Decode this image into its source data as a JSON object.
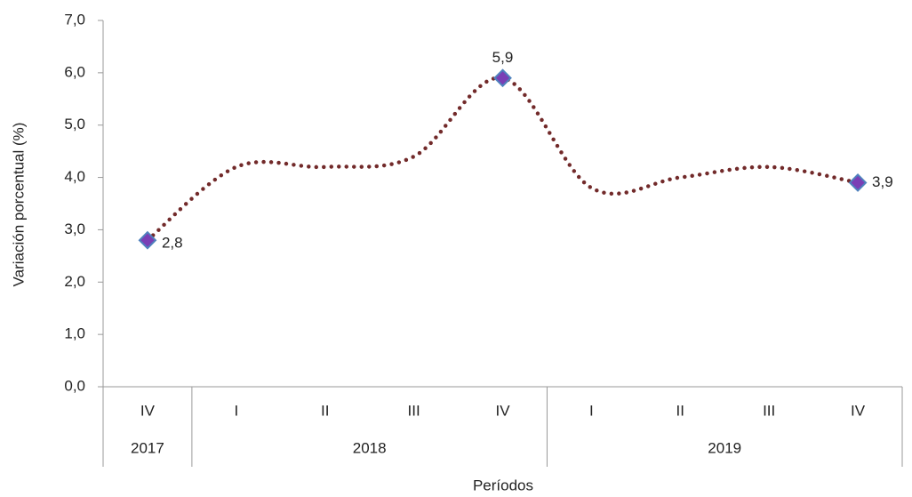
{
  "chart_data": {
    "type": "line",
    "categories": [
      "IV",
      "I",
      "II",
      "III",
      "IV",
      "I",
      "II",
      "III",
      "IV"
    ],
    "groups": [
      {
        "name": "2017",
        "count": 1
      },
      {
        "name": "2018",
        "count": 4
      },
      {
        "name": "2019",
        "count": 4
      }
    ],
    "series": [
      {
        "name": "Variación porcentual",
        "color": "#722a2a",
        "marker_color": "#7a3fb5",
        "marker_edge": "#4f81bd",
        "values": [
          2.8,
          4.2,
          4.2,
          4.4,
          5.9,
          3.8,
          4.0,
          4.2,
          3.9
        ],
        "value_labels": [
          "2,8",
          null,
          null,
          null,
          "5,9",
          null,
          null,
          null,
          "3,9"
        ]
      }
    ],
    "ylim": [
      0,
      7
    ],
    "yticks": [
      {
        "value": 0,
        "label": "0,0"
      },
      {
        "value": 1,
        "label": "1,0"
      },
      {
        "value": 2,
        "label": "2,0"
      },
      {
        "value": 3,
        "label": "3,0"
      },
      {
        "value": 4,
        "label": "4,0"
      },
      {
        "value": 5,
        "label": "5,0"
      },
      {
        "value": 6,
        "label": "6,0"
      },
      {
        "value": 7,
        "label": "7,0"
      }
    ],
    "ylabel": "Variación  porcentual  (%)",
    "xlabel": "Períodos",
    "grid": false
  }
}
